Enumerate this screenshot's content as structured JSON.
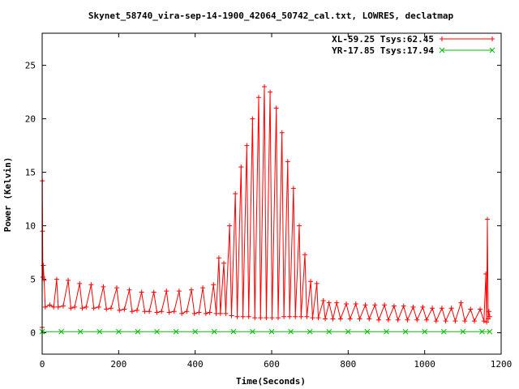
{
  "chart_data": {
    "type": "line",
    "title": "Skynet_58740_vira-sep-14-1900_42064_50742_cal.txt, LOWRES, declatmap",
    "xlabel": "Time(Seconds)",
    "ylabel": "Power (Kelvin)",
    "xlim": [
      0,
      1200
    ],
    "ylim": [
      -2,
      28
    ],
    "x_ticks": [
      0,
      200,
      400,
      600,
      800,
      1000,
      1200
    ],
    "y_ticks": [
      0,
      5,
      10,
      15,
      20,
      25
    ],
    "grid": false,
    "legend_position": "top-right",
    "series": [
      {
        "name": "XL-59.25 Tsys:62.45",
        "color": "#ff0000",
        "marker": "plus",
        "points": [
          [
            0,
            0.5
          ],
          [
            0.5,
            14.2
          ],
          [
            1,
            9.5
          ],
          [
            2,
            5.2
          ],
          [
            3,
            6.3
          ],
          [
            5,
            4.9
          ],
          [
            8,
            2.4
          ],
          [
            20,
            2.6
          ],
          [
            30,
            2.4
          ],
          [
            38,
            5.0
          ],
          [
            42,
            2.4
          ],
          [
            55,
            2.5
          ],
          [
            68,
            4.9
          ],
          [
            75,
            2.3
          ],
          [
            85,
            2.4
          ],
          [
            98,
            4.6
          ],
          [
            105,
            2.3
          ],
          [
            115,
            2.4
          ],
          [
            128,
            4.5
          ],
          [
            135,
            2.3
          ],
          [
            148,
            2.4
          ],
          [
            160,
            4.3
          ],
          [
            168,
            2.2
          ],
          [
            180,
            2.3
          ],
          [
            195,
            4.2
          ],
          [
            202,
            2.1
          ],
          [
            215,
            2.2
          ],
          [
            228,
            4.0
          ],
          [
            235,
            2.0
          ],
          [
            248,
            2.1
          ],
          [
            260,
            3.8
          ],
          [
            268,
            2.0
          ],
          [
            280,
            2.0
          ],
          [
            292,
            3.8
          ],
          [
            300,
            1.9
          ],
          [
            312,
            2.0
          ],
          [
            325,
            3.9
          ],
          [
            332,
            1.9
          ],
          [
            345,
            2.0
          ],
          [
            358,
            3.9
          ],
          [
            365,
            1.8
          ],
          [
            378,
            2.0
          ],
          [
            390,
            4.0
          ],
          [
            398,
            1.8
          ],
          [
            410,
            1.9
          ],
          [
            420,
            4.2
          ],
          [
            428,
            1.8
          ],
          [
            438,
            1.9
          ],
          [
            448,
            4.5
          ],
          [
            455,
            1.8
          ],
          [
            462,
            7.0
          ],
          [
            466,
            1.8
          ],
          [
            475,
            6.5
          ],
          [
            480,
            1.8
          ],
          [
            490,
            10.0
          ],
          [
            495,
            1.6
          ],
          [
            505,
            13.0
          ],
          [
            510,
            1.5
          ],
          [
            520,
            15.5
          ],
          [
            525,
            1.5
          ],
          [
            535,
            17.5
          ],
          [
            540,
            1.5
          ],
          [
            550,
            20.0
          ],
          [
            556,
            1.4
          ],
          [
            566,
            22.0
          ],
          [
            571,
            1.4
          ],
          [
            581,
            23.0
          ],
          [
            586,
            1.4
          ],
          [
            596,
            22.5
          ],
          [
            601,
            1.4
          ],
          [
            612,
            21.0
          ],
          [
            617,
            1.4
          ],
          [
            627,
            18.7
          ],
          [
            632,
            1.5
          ],
          [
            642,
            16.0
          ],
          [
            647,
            1.5
          ],
          [
            657,
            13.5
          ],
          [
            662,
            1.5
          ],
          [
            672,
            10.0
          ],
          [
            677,
            1.5
          ],
          [
            687,
            7.3
          ],
          [
            692,
            1.5
          ],
          [
            702,
            4.8
          ],
          [
            707,
            1.4
          ],
          [
            718,
            4.6
          ],
          [
            722,
            1.4
          ],
          [
            735,
            3.0
          ],
          [
            740,
            1.3
          ],
          [
            750,
            2.8
          ],
          [
            760,
            1.3
          ],
          [
            770,
            2.8
          ],
          [
            780,
            1.3
          ],
          [
            795,
            2.7
          ],
          [
            805,
            1.3
          ],
          [
            820,
            2.7
          ],
          [
            830,
            1.3
          ],
          [
            845,
            2.6
          ],
          [
            855,
            1.3
          ],
          [
            870,
            2.6
          ],
          [
            880,
            1.2
          ],
          [
            895,
            2.6
          ],
          [
            905,
            1.2
          ],
          [
            920,
            2.5
          ],
          [
            930,
            1.2
          ],
          [
            945,
            2.5
          ],
          [
            955,
            1.2
          ],
          [
            970,
            2.4
          ],
          [
            980,
            1.2
          ],
          [
            995,
            2.4
          ],
          [
            1005,
            1.2
          ],
          [
            1020,
            2.3
          ],
          [
            1030,
            1.1
          ],
          [
            1045,
            2.3
          ],
          [
            1055,
            1.1
          ],
          [
            1070,
            2.3
          ],
          [
            1080,
            1.1
          ],
          [
            1095,
            2.8
          ],
          [
            1105,
            1.1
          ],
          [
            1120,
            2.2
          ],
          [
            1130,
            1.1
          ],
          [
            1145,
            2.2
          ],
          [
            1155,
            1.1
          ],
          [
            1160,
            5.5
          ],
          [
            1162,
            1.0
          ],
          [
            1164,
            10.6
          ],
          [
            1166,
            1.3
          ],
          [
            1168,
            2.0
          ],
          [
            1170,
            1.5
          ]
        ]
      },
      {
        "name": "YR-17.85 Tsys:17.94",
        "color": "#00c000",
        "marker": "cross",
        "points": [
          [
            0,
            0.1
          ],
          [
            50,
            0.1
          ],
          [
            100,
            0.1
          ],
          [
            150,
            0.1
          ],
          [
            200,
            0.1
          ],
          [
            250,
            0.1
          ],
          [
            300,
            0.1
          ],
          [
            350,
            0.1
          ],
          [
            400,
            0.1
          ],
          [
            450,
            0.1
          ],
          [
            500,
            0.1
          ],
          [
            550,
            0.1
          ],
          [
            600,
            0.1
          ],
          [
            650,
            0.1
          ],
          [
            700,
            0.1
          ],
          [
            750,
            0.1
          ],
          [
            800,
            0.1
          ],
          [
            850,
            0.1
          ],
          [
            900,
            0.1
          ],
          [
            950,
            0.1
          ],
          [
            1000,
            0.1
          ],
          [
            1050,
            0.1
          ],
          [
            1100,
            0.1
          ],
          [
            1150,
            0.1
          ],
          [
            1170,
            0.1
          ]
        ]
      }
    ]
  }
}
